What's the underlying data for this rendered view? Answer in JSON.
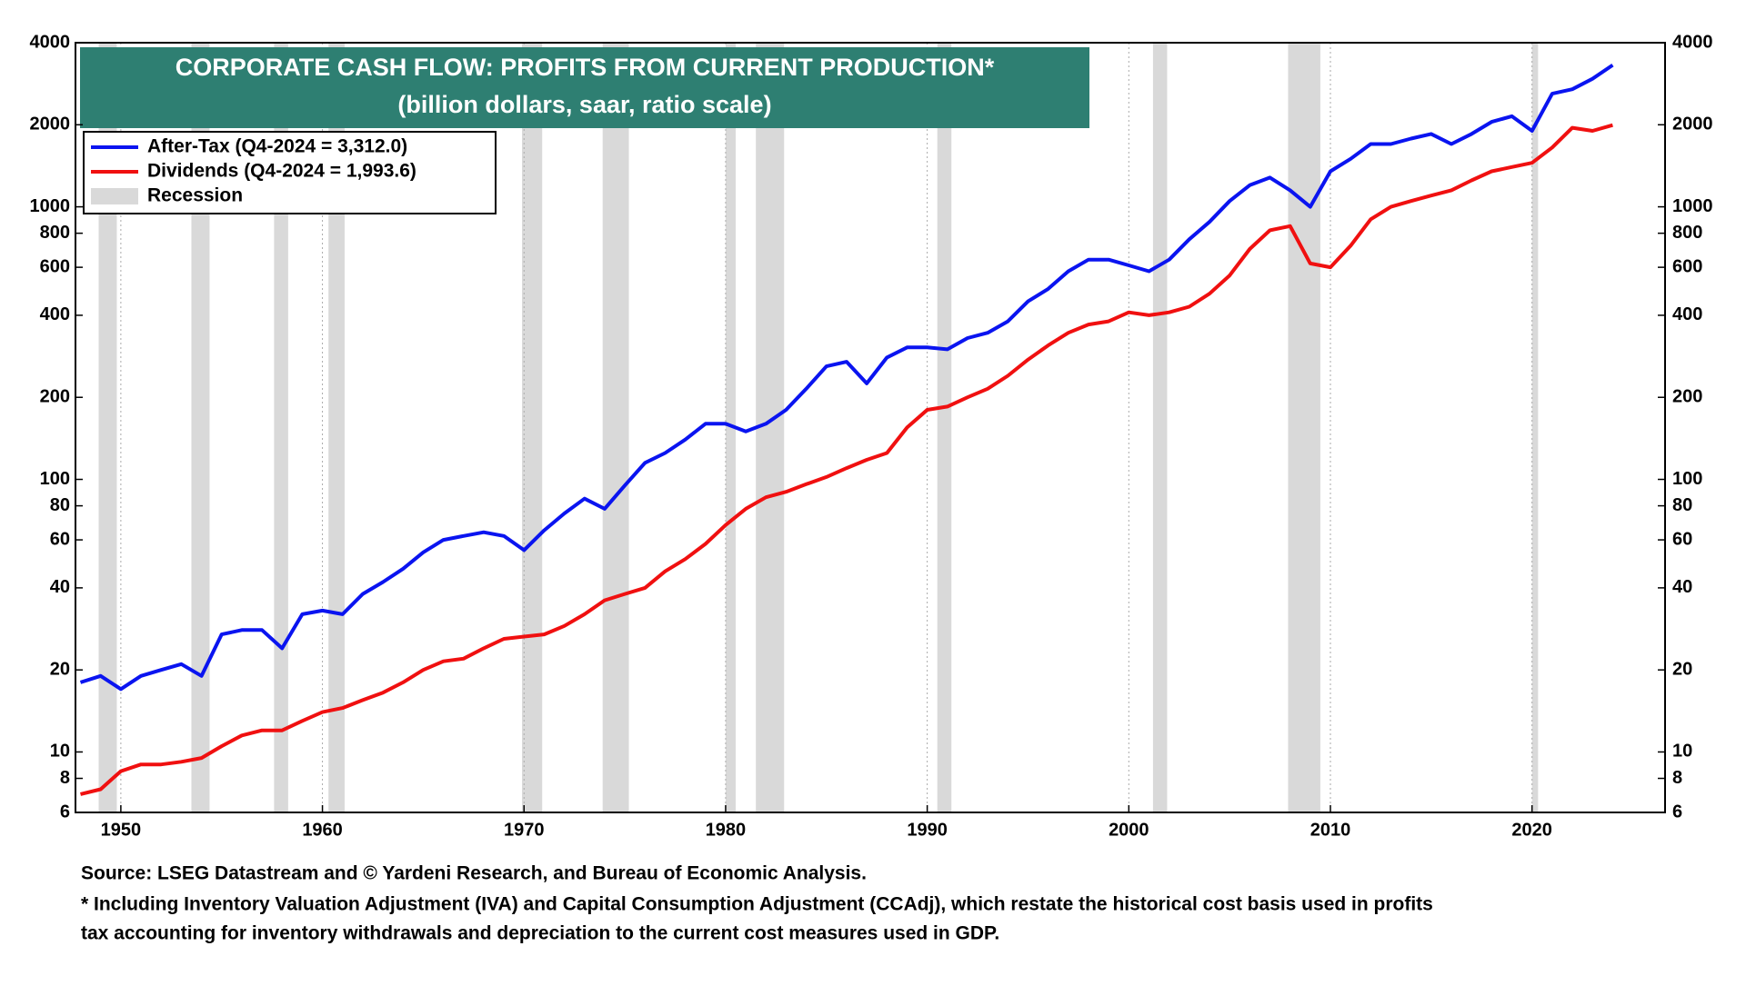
{
  "chart_data": {
    "type": "line",
    "title": "CORPORATE CASH FLOW: PROFITS FROM CURRENT PRODUCTION*",
    "subtitle": "(billion dollars, saar, ratio scale)",
    "log_scale": true,
    "grid": true,
    "xlim": [
      1947.75,
      2026.6
    ],
    "xticks": [
      1950,
      1960,
      1970,
      1980,
      1990,
      2000,
      2010,
      2020
    ],
    "ylim": [
      6,
      4000
    ],
    "yticks": [
      6,
      8,
      10,
      20,
      40,
      60,
      80,
      100,
      200,
      400,
      600,
      800,
      1000,
      2000,
      4000
    ],
    "x": [
      1948,
      1949,
      1950,
      1951,
      1952,
      1953,
      1954,
      1955,
      1956,
      1957,
      1958,
      1959,
      1960,
      1961,
      1962,
      1963,
      1964,
      1965,
      1966,
      1967,
      1968,
      1969,
      1970,
      1971,
      1972,
      1973,
      1974,
      1975,
      1976,
      1977,
      1978,
      1979,
      1980,
      1981,
      1982,
      1983,
      1984,
      1985,
      1986,
      1987,
      1988,
      1989,
      1990,
      1991,
      1992,
      1993,
      1994,
      1995,
      1996,
      1997,
      1998,
      1999,
      2000,
      2001,
      2002,
      2003,
      2004,
      2005,
      2006,
      2007,
      2008,
      2009,
      2010,
      2011,
      2012,
      2013,
      2014,
      2015,
      2016,
      2017,
      2018,
      2019,
      2020,
      2021,
      2022,
      2023,
      2024
    ],
    "series": [
      {
        "name": "After-Tax (Q4-2024 = 3,312.0)",
        "color": "#0a14f0",
        "values": [
          18,
          19,
          17,
          19,
          20,
          21,
          19,
          27,
          28,
          28,
          24,
          32,
          33,
          32,
          38,
          42,
          47,
          54,
          60,
          62,
          64,
          62,
          55,
          65,
          75,
          85,
          78,
          95,
          115,
          125,
          140,
          160,
          160,
          150,
          160,
          180,
          215,
          260,
          270,
          225,
          280,
          305,
          305,
          300,
          330,
          345,
          380,
          450,
          500,
          580,
          640,
          640,
          610,
          580,
          640,
          760,
          880,
          1050,
          1200,
          1280,
          1150,
          1000,
          1350,
          1500,
          1700,
          1700,
          1780,
          1850,
          1700,
          1850,
          2050,
          2150,
          1900,
          2600,
          2700,
          2950,
          3312
        ]
      },
      {
        "name": "Dividends (Q4-2024 = 1,993.6)",
        "color": "#f01010",
        "values": [
          7,
          7.3,
          8.5,
          9,
          9,
          9.2,
          9.5,
          10.5,
          11.5,
          12,
          12,
          13,
          14,
          14.5,
          15.5,
          16.5,
          18,
          20,
          21.5,
          22,
          24,
          26,
          26.5,
          27,
          29,
          32,
          36,
          38,
          40,
          46,
          51,
          58,
          68,
          78,
          86,
          90,
          96,
          102,
          110,
          118,
          125,
          155,
          180,
          185,
          200,
          215,
          240,
          275,
          310,
          345,
          370,
          380,
          410,
          400,
          410,
          430,
          480,
          560,
          700,
          820,
          850,
          620,
          600,
          720,
          900,
          1000,
          1050,
          1100,
          1150,
          1250,
          1350,
          1400,
          1450,
          1650,
          1950,
          1900,
          1993.6
        ]
      }
    ],
    "recession_label": "Recession",
    "recession_color": "#d9d9d9",
    "recessions": [
      [
        1948.9,
        1949.8
      ],
      [
        1953.5,
        1954.4
      ],
      [
        1957.6,
        1958.3
      ],
      [
        1960.3,
        1961.1
      ],
      [
        1969.9,
        1970.9
      ],
      [
        1973.9,
        1975.2
      ],
      [
        1980.0,
        1980.5
      ],
      [
        1981.5,
        1982.9
      ],
      [
        1990.5,
        1991.2
      ],
      [
        2001.2,
        2001.9
      ],
      [
        2007.9,
        2009.5
      ],
      [
        2020.0,
        2020.3
      ]
    ],
    "notes": [
      "Source: LSEG Datastream and © Yardeni Research, and Bureau of Economic Analysis.",
      "* Including Inventory Valuation Adjustment (IVA) and Capital Consumption Adjustment (CCAdj), which restate the historical cost basis used in profits",
      "tax accounting for inventory withdrawals and depreciation to the current cost measures used in GDP."
    ]
  }
}
